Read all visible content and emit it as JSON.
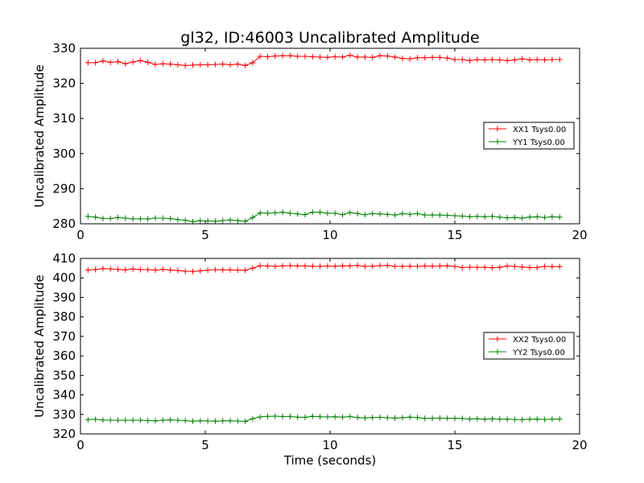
{
  "figure": {
    "title": "gl32, ID:46003 Uncalibrated Amplitude"
  },
  "chart_data": [
    {
      "type": "line",
      "ylabel": "Uncalibrated Amplitude",
      "xlabel": "",
      "xlim": [
        0,
        20
      ],
      "ylim": [
        280,
        330
      ],
      "xticks": [
        0,
        5,
        10,
        15,
        20
      ],
      "yticks": [
        280,
        290,
        300,
        310,
        320,
        330
      ],
      "grid": false,
      "legend_position": "center-right",
      "x": [
        0.3,
        0.6,
        0.9,
        1.2,
        1.5,
        1.8,
        2.1,
        2.4,
        2.7,
        3.0,
        3.3,
        3.6,
        3.9,
        4.2,
        4.5,
        4.8,
        5.1,
        5.4,
        5.7,
        6.0,
        6.3,
        6.6,
        6.9,
        7.2,
        7.5,
        7.8,
        8.1,
        8.4,
        8.7,
        9.0,
        9.3,
        9.6,
        9.9,
        10.2,
        10.5,
        10.8,
        11.1,
        11.4,
        11.7,
        12.0,
        12.3,
        12.6,
        12.9,
        13.2,
        13.5,
        13.8,
        14.1,
        14.4,
        14.7,
        15.0,
        15.3,
        15.6,
        15.9,
        16.2,
        16.5,
        16.8,
        17.1,
        17.4,
        17.7,
        18.0,
        18.3,
        18.6,
        18.9,
        19.2
      ],
      "series": [
        {
          "name": "XX1 Tsys0.00",
          "color": "#ff0000",
          "values": [
            325.9,
            325.9,
            326.4,
            326.0,
            326.2,
            325.6,
            326.1,
            326.5,
            326.0,
            325.4,
            325.6,
            325.5,
            325.3,
            325.1,
            325.2,
            325.3,
            325.3,
            325.4,
            325.5,
            325.3,
            325.5,
            325.1,
            325.9,
            327.7,
            327.6,
            327.8,
            327.9,
            327.9,
            327.7,
            327.7,
            327.6,
            327.5,
            327.4,
            327.6,
            327.5,
            328.0,
            327.5,
            327.5,
            327.4,
            327.9,
            327.8,
            327.5,
            327.1,
            327.0,
            327.3,
            327.3,
            327.4,
            327.4,
            327.2,
            326.8,
            326.8,
            326.5,
            326.8,
            326.7,
            326.8,
            326.7,
            326.5,
            326.7,
            327.0,
            326.7,
            326.8,
            326.7,
            326.8,
            326.8
          ]
        },
        {
          "name": "YY1 Tsys0.00",
          "color": "#008000",
          "values": [
            282.1,
            281.9,
            281.5,
            281.5,
            281.8,
            281.6,
            281.4,
            281.4,
            281.4,
            281.6,
            281.6,
            281.5,
            281.2,
            281.0,
            280.6,
            280.9,
            280.8,
            280.7,
            280.9,
            281.1,
            280.9,
            280.7,
            281.8,
            283.1,
            283.0,
            283.1,
            283.3,
            283.0,
            282.8,
            282.6,
            283.3,
            283.3,
            283.0,
            283.0,
            282.6,
            283.2,
            282.9,
            282.6,
            282.9,
            282.8,
            282.7,
            282.5,
            282.9,
            282.7,
            282.9,
            282.5,
            282.5,
            282.5,
            282.4,
            282.3,
            282.2,
            282.0,
            282.1,
            282.0,
            282.1,
            281.9,
            281.7,
            281.8,
            281.6,
            281.9,
            282.0,
            281.8,
            282.0,
            281.9
          ]
        }
      ]
    },
    {
      "type": "line",
      "ylabel": "Uncalibrated Amplitude",
      "xlabel": "Time (seconds)",
      "xlim": [
        0,
        20
      ],
      "ylim": [
        320,
        410
      ],
      "xticks": [
        0,
        5,
        10,
        15,
        20
      ],
      "yticks": [
        320,
        330,
        340,
        350,
        360,
        370,
        380,
        390,
        400,
        410
      ],
      "grid": false,
      "legend_position": "center-right",
      "x": [
        0.3,
        0.6,
        0.9,
        1.2,
        1.5,
        1.8,
        2.1,
        2.4,
        2.7,
        3.0,
        3.3,
        3.6,
        3.9,
        4.2,
        4.5,
        4.8,
        5.1,
        5.4,
        5.7,
        6.0,
        6.3,
        6.6,
        6.9,
        7.2,
        7.5,
        7.8,
        8.1,
        8.4,
        8.7,
        9.0,
        9.3,
        9.6,
        9.9,
        10.2,
        10.5,
        10.8,
        11.1,
        11.4,
        11.7,
        12.0,
        12.3,
        12.6,
        12.9,
        13.2,
        13.5,
        13.8,
        14.1,
        14.4,
        14.7,
        15.0,
        15.3,
        15.6,
        15.9,
        16.2,
        16.5,
        16.8,
        17.1,
        17.4,
        17.7,
        18.0,
        18.3,
        18.6,
        18.9,
        19.2
      ],
      "series": [
        {
          "name": "XX2 Tsys0.00",
          "color": "#ff0000",
          "values": [
            404.0,
            404.3,
            404.8,
            404.6,
            404.4,
            404.1,
            404.6,
            404.3,
            404.2,
            404.0,
            404.4,
            404.0,
            403.8,
            403.4,
            403.3,
            403.6,
            404.0,
            404.2,
            404.1,
            404.1,
            404.0,
            403.9,
            405.0,
            406.3,
            406.1,
            405.9,
            406.2,
            406.3,
            406.1,
            406.1,
            406.0,
            405.9,
            406.1,
            406.0,
            406.2,
            406.1,
            406.4,
            405.9,
            406.0,
            406.3,
            406.4,
            405.9,
            405.9,
            406.0,
            405.9,
            406.1,
            406.0,
            406.1,
            406.2,
            405.9,
            405.3,
            405.5,
            405.4,
            405.4,
            405.2,
            405.4,
            406.1,
            405.9,
            405.6,
            405.3,
            405.3,
            405.9,
            405.8,
            405.8
          ]
        },
        {
          "name": "YY2 Tsys0.00",
          "color": "#008000",
          "values": [
            327.3,
            327.5,
            327.1,
            327.0,
            327.0,
            327.0,
            327.0,
            327.0,
            326.8,
            326.7,
            327.0,
            327.2,
            327.0,
            326.8,
            326.5,
            326.7,
            326.6,
            326.5,
            326.7,
            326.7,
            326.6,
            326.4,
            327.8,
            328.7,
            329.0,
            329.1,
            328.9,
            328.9,
            328.6,
            328.5,
            329.0,
            328.8,
            328.7,
            328.8,
            328.6,
            328.9,
            328.4,
            328.2,
            328.4,
            328.5,
            328.3,
            328.1,
            328.3,
            328.6,
            328.4,
            328.0,
            328.0,
            328.1,
            328.0,
            328.0,
            327.9,
            327.6,
            327.8,
            327.5,
            327.7,
            327.6,
            327.6,
            327.4,
            327.3,
            327.5,
            327.6,
            327.4,
            327.6,
            327.6
          ]
        }
      ]
    }
  ]
}
